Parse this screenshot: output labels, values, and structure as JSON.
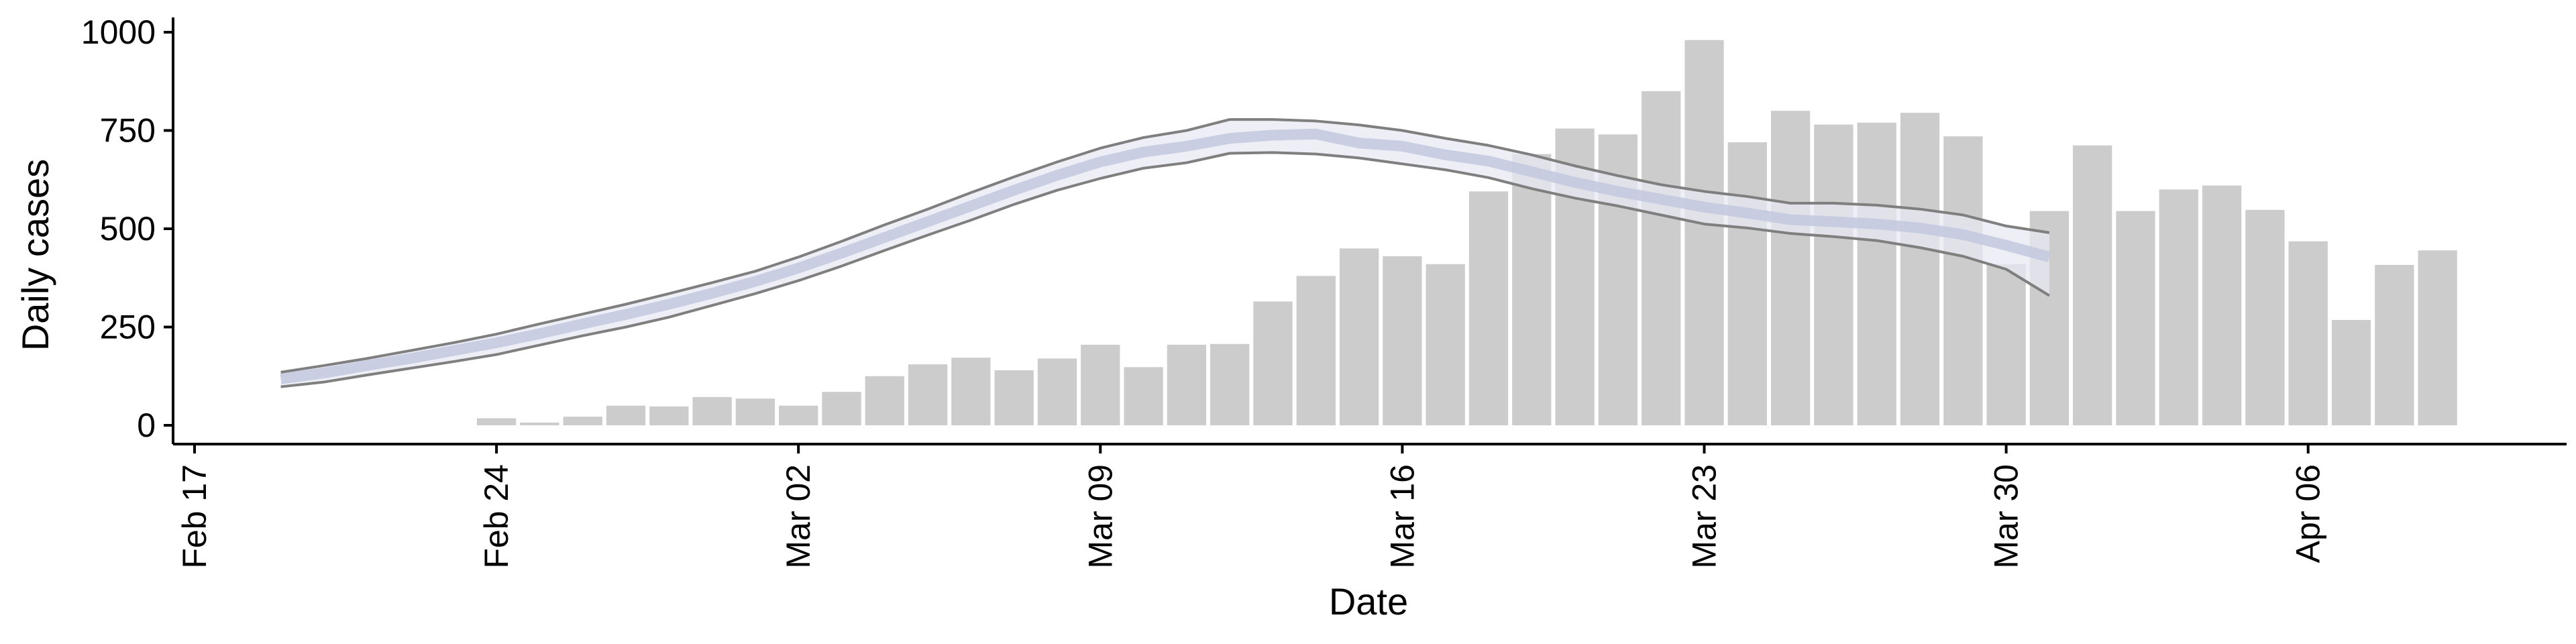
{
  "chart_data": {
    "type": "bar",
    "xlabel": "Date",
    "ylabel": "Daily cases",
    "ylim": [
      0,
      1000
    ],
    "yticks": [
      0,
      250,
      500,
      750,
      1000
    ],
    "xlim": [
      "2020-02-17",
      "2020-04-12"
    ],
    "xticks": [
      {
        "date": "2020-02-17",
        "label": "Feb 17"
      },
      {
        "date": "2020-02-24",
        "label": "Feb 24"
      },
      {
        "date": "2020-03-02",
        "label": "Mar 02"
      },
      {
        "date": "2020-03-09",
        "label": "Mar 09"
      },
      {
        "date": "2020-03-16",
        "label": "Mar 16"
      },
      {
        "date": "2020-03-23",
        "label": "Mar 23"
      },
      {
        "date": "2020-03-30",
        "label": "Mar 30"
      },
      {
        "date": "2020-04-06",
        "label": "Apr 06"
      }
    ],
    "grid": false,
    "legend": "none",
    "bars": {
      "color": "#cccccc",
      "x": [
        "2020-02-24",
        "2020-02-25",
        "2020-02-26",
        "2020-02-27",
        "2020-02-28",
        "2020-02-29",
        "2020-03-01",
        "2020-03-02",
        "2020-03-03",
        "2020-03-04",
        "2020-03-05",
        "2020-03-06",
        "2020-03-07",
        "2020-03-08",
        "2020-03-09",
        "2020-03-10",
        "2020-03-11",
        "2020-03-12",
        "2020-03-13",
        "2020-03-14",
        "2020-03-15",
        "2020-03-16",
        "2020-03-17",
        "2020-03-18",
        "2020-03-19",
        "2020-03-20",
        "2020-03-21",
        "2020-03-22",
        "2020-03-23",
        "2020-03-24",
        "2020-03-25",
        "2020-03-26",
        "2020-03-27",
        "2020-03-28",
        "2020-03-29",
        "2020-03-30",
        "2020-03-31",
        "2020-04-01",
        "2020-04-02",
        "2020-04-03",
        "2020-04-04",
        "2020-04-05",
        "2020-04-06",
        "2020-04-07",
        "2020-04-08",
        "2020-04-09"
      ],
      "values": [
        18,
        7,
        22,
        50,
        48,
        72,
        68,
        50,
        85,
        125,
        155,
        172,
        140,
        170,
        205,
        148,
        205,
        207,
        315,
        380,
        450,
        430,
        410,
        595,
        690,
        755,
        740,
        850,
        980,
        720,
        800,
        765,
        770,
        795,
        735,
        410,
        545,
        712,
        545,
        600,
        610,
        548,
        468,
        268,
        408,
        445
      ]
    },
    "series": [
      {
        "band_color": "#e8eaf3",
        "line_color": "#c2c8de",
        "bound_color": "#7f7f7f",
        "x": [
          "2020-02-19",
          "2020-02-20",
          "2020-02-21",
          "2020-02-22",
          "2020-02-23",
          "2020-02-24",
          "2020-02-25",
          "2020-02-26",
          "2020-02-27",
          "2020-02-28",
          "2020-02-29",
          "2020-03-01",
          "2020-03-02",
          "2020-03-03",
          "2020-03-04",
          "2020-03-05",
          "2020-03-06",
          "2020-03-07",
          "2020-03-08",
          "2020-03-09",
          "2020-03-10",
          "2020-03-11",
          "2020-03-12",
          "2020-03-13",
          "2020-03-14",
          "2020-03-15",
          "2020-03-16",
          "2020-03-17",
          "2020-03-18",
          "2020-03-19",
          "2020-03-20",
          "2020-03-21",
          "2020-03-22",
          "2020-03-23",
          "2020-03-24",
          "2020-03-25",
          "2020-03-26",
          "2020-03-27",
          "2020-03-28",
          "2020-03-29",
          "2020-03-30",
          "2020-03-31"
        ],
        "upper": [
          135,
          152,
          170,
          190,
          210,
          232,
          258,
          283,
          308,
          335,
          363,
          392,
          428,
          468,
          510,
          550,
          592,
          632,
          670,
          705,
          732,
          750,
          778,
          778,
          774,
          764,
          750,
          730,
          712,
          688,
          660,
          635,
          612,
          595,
          582,
          565,
          565,
          560,
          550,
          535,
          507,
          490
        ],
        "median": [
          118,
          133,
          152,
          170,
          190,
          210,
          233,
          258,
          282,
          308,
          336,
          366,
          400,
          438,
          478,
          518,
          558,
          598,
          636,
          670,
          695,
          710,
          730,
          738,
          741,
          718,
          710,
          688,
          672,
          645,
          618,
          595,
          575,
          555,
          540,
          523,
          518,
          512,
          502,
          485,
          458,
          428
        ],
        "lower": [
          98,
          110,
          128,
          145,
          162,
          180,
          204,
          228,
          250,
          275,
          305,
          335,
          368,
          405,
          445,
          484,
          522,
          562,
          598,
          628,
          654,
          668,
          692,
          694,
          690,
          680,
          665,
          650,
          630,
          602,
          578,
          558,
          535,
          512,
          502,
          488,
          480,
          470,
          452,
          430,
          397,
          330
        ]
      }
    ]
  }
}
